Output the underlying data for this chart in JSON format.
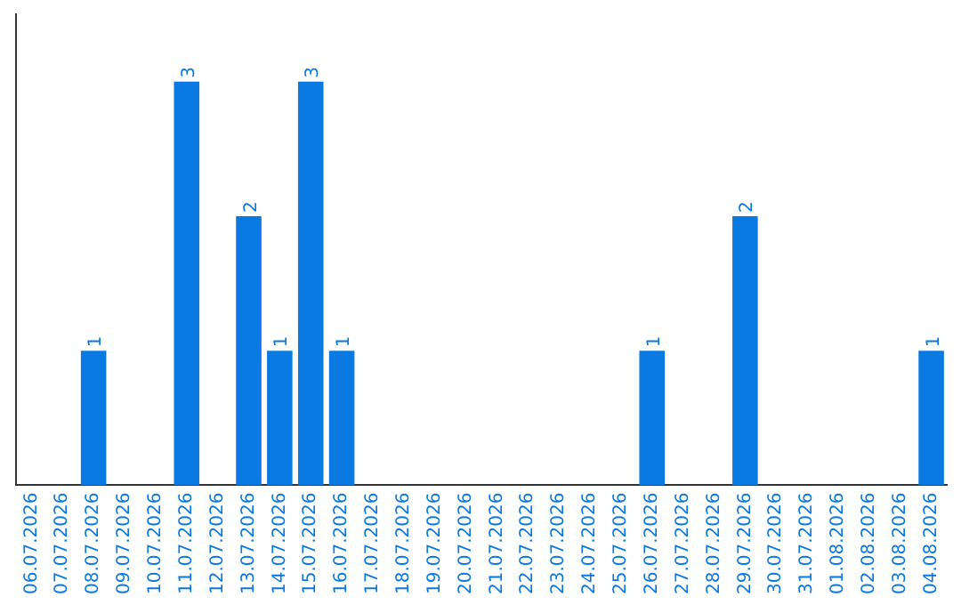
{
  "chart_data": {
    "type": "bar",
    "categories": [
      "06.07.2026",
      "07.07.2026",
      "08.07.2026",
      "09.07.2026",
      "10.07.2026",
      "11.07.2026",
      "12.07.2026",
      "13.07.2026",
      "14.07.2026",
      "15.07.2026",
      "16.07.2026",
      "17.07.2026",
      "18.07.2026",
      "19.07.2026",
      "20.07.2026",
      "21.07.2026",
      "22.07.2026",
      "23.07.2026",
      "24.07.2026",
      "25.07.2026",
      "26.07.2026",
      "27.07.2026",
      "28.07.2026",
      "29.07.2026",
      "30.07.2026",
      "31.07.2026",
      "01.08.2026",
      "02.08.2026",
      "03.08.2026",
      "04.08.2026"
    ],
    "values": [
      0,
      0,
      1,
      0,
      0,
      3,
      0,
      2,
      1,
      3,
      1,
      0,
      0,
      0,
      0,
      0,
      0,
      0,
      0,
      0,
      1,
      0,
      0,
      2,
      0,
      0,
      0,
      0,
      0,
      1
    ],
    "value_labels": [
      null,
      null,
      "1",
      null,
      null,
      "3",
      null,
      "2",
      "1",
      "3",
      "1",
      null,
      null,
      null,
      null,
      null,
      null,
      null,
      null,
      null,
      "1",
      null,
      null,
      "2",
      null,
      null,
      null,
      null,
      null,
      "1"
    ],
    "color": "#0a7ae2",
    "tick_labels": "x",
    "grid": false,
    "legend": false
  }
}
